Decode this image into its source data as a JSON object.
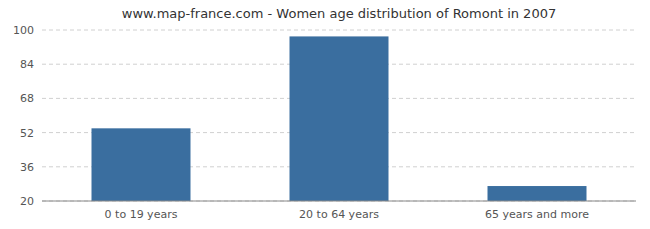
{
  "chart_data": {
    "type": "bar",
    "title": "www.map-france.com - Women age distribution of Romont in 2007",
    "categories": [
      "0 to 19 years",
      "20 to 64 years",
      "65 years and more"
    ],
    "values": [
      54,
      97,
      27
    ],
    "color": "#3a6e9f",
    "ylim": [
      20,
      100
    ],
    "yticks": [
      20,
      36,
      52,
      68,
      84,
      100
    ],
    "grid": true
  }
}
